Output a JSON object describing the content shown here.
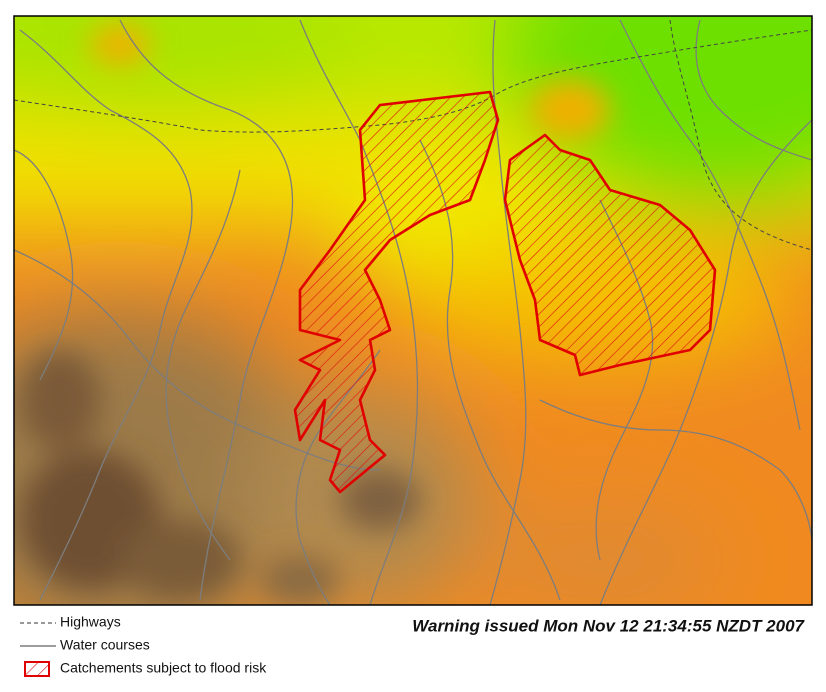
{
  "legend": {
    "items": [
      {
        "label": "Highways"
      },
      {
        "label": "Water courses"
      },
      {
        "label": "Catchements subject to flood risk"
      }
    ]
  },
  "warning": "Warning issued Mon Nov 12 21:34:55 NZDT 2007"
}
